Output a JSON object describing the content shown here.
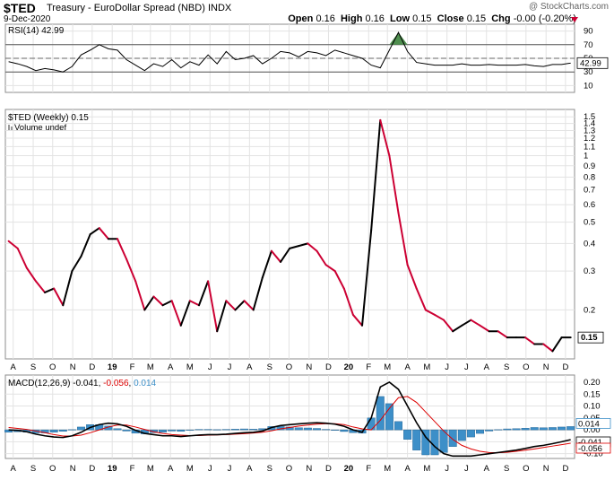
{
  "header": {
    "ticker": "$TED",
    "name": "Treasury - EuroDollar Spread (NBD)",
    "exchange": "INDX",
    "date": "9-Dec-2020",
    "brand": "@ StockCharts.com",
    "open_label": "Open",
    "open_value": "0.16",
    "high_label": "High",
    "high_value": "0.16",
    "low_label": "Low",
    "low_value": "0.15",
    "close_label": "Close",
    "close_value": "0.15",
    "chg_label": "Chg",
    "chg_value": "-0.00 (-0.20%)"
  },
  "chart_data": [
    {
      "type": "line",
      "panel": "RSI",
      "legend": "RSI(14) 42.99",
      "ylim": [
        0,
        100
      ],
      "yticks": [
        10,
        30,
        50,
        70,
        90
      ],
      "right_labels": [
        30,
        42.99,
        50,
        70,
        90
      ],
      "reference_lines": [
        30,
        70
      ],
      "current_value": "42.99",
      "x": [
        "2018-07-25",
        "2018-08-08",
        "2018-08-22",
        "2018-09-05",
        "2018-09-19",
        "2018-10-03",
        "2018-10-17",
        "2018-10-31",
        "2018-11-14",
        "2018-11-28",
        "2018-12-12",
        "2018-12-26",
        "2019-01-09",
        "2019-01-23",
        "2019-02-06",
        "2019-02-20",
        "2019-03-06",
        "2019-03-20",
        "2019-04-03",
        "2019-04-17",
        "2019-05-01",
        "2019-05-15",
        "2019-05-29",
        "2019-06-12",
        "2019-06-26",
        "2019-07-10",
        "2019-07-24",
        "2019-08-07",
        "2019-08-21",
        "2019-09-04",
        "2019-09-18",
        "2019-10-02",
        "2019-10-16",
        "2019-10-30",
        "2019-11-13",
        "2019-11-27",
        "2019-12-11",
        "2019-12-25",
        "2020-01-08",
        "2020-01-22",
        "2020-02-05",
        "2020-02-19",
        "2020-03-04",
        "2020-03-18",
        "2020-04-01",
        "2020-04-15",
        "2020-04-29",
        "2020-05-13",
        "2020-05-27",
        "2020-06-10",
        "2020-06-24",
        "2020-07-08",
        "2020-07-22",
        "2020-08-05",
        "2020-08-19",
        "2020-09-02",
        "2020-09-16",
        "2020-09-30",
        "2020-10-14",
        "2020-10-28",
        "2020-11-11",
        "2020-11-25",
        "2020-12-09"
      ],
      "values": [
        45,
        42,
        38,
        32,
        35,
        33,
        30,
        38,
        55,
        62,
        70,
        64,
        62,
        48,
        40,
        32,
        42,
        38,
        48,
        36,
        45,
        40,
        55,
        42,
        60,
        48,
        50,
        54,
        42,
        50,
        60,
        58,
        52,
        60,
        58,
        54,
        62,
        58,
        54,
        50,
        40,
        36,
        62,
        88,
        60,
        44,
        42,
        40,
        40,
        40,
        42,
        40,
        40,
        41,
        40,
        40,
        40,
        41,
        39,
        38,
        41,
        41,
        43
      ]
    },
    {
      "type": "line",
      "panel": "Price",
      "legend": "$TED (Weekly) 0.15",
      "sublegend": "Volume undef",
      "scale": "log",
      "ylim": [
        0.12,
        1.62
      ],
      "yticks": [
        0.2,
        0.3,
        0.4,
        0.5,
        0.6,
        0.7,
        0.8,
        0.9,
        1.0,
        1.1,
        1.2,
        1.3,
        1.4,
        1.5
      ],
      "current_value": "0.15",
      "up_color": "#000000",
      "down_color": "#cc0033",
      "x": [
        "2018-07-25",
        "2018-08-08",
        "2018-08-22",
        "2018-09-05",
        "2018-09-19",
        "2018-10-03",
        "2018-10-17",
        "2018-10-31",
        "2018-11-14",
        "2018-11-28",
        "2018-12-12",
        "2018-12-26",
        "2019-01-09",
        "2019-01-23",
        "2019-02-06",
        "2019-02-20",
        "2019-03-06",
        "2019-03-20",
        "2019-04-03",
        "2019-04-17",
        "2019-05-01",
        "2019-05-15",
        "2019-05-29",
        "2019-06-12",
        "2019-06-26",
        "2019-07-10",
        "2019-07-24",
        "2019-08-07",
        "2019-08-21",
        "2019-09-04",
        "2019-09-18",
        "2019-10-02",
        "2019-10-16",
        "2019-10-30",
        "2019-11-13",
        "2019-11-27",
        "2019-12-11",
        "2019-12-25",
        "2020-01-08",
        "2020-01-22",
        "2020-02-05",
        "2020-02-19",
        "2020-03-04",
        "2020-03-18",
        "2020-04-01",
        "2020-04-15",
        "2020-04-29",
        "2020-05-13",
        "2020-05-27",
        "2020-06-10",
        "2020-06-24",
        "2020-07-08",
        "2020-07-22",
        "2020-08-05",
        "2020-08-19",
        "2020-09-02",
        "2020-09-16",
        "2020-09-30",
        "2020-10-14",
        "2020-10-28",
        "2020-11-11",
        "2020-11-25",
        "2020-12-09"
      ],
      "values": [
        0.41,
        0.38,
        0.31,
        0.27,
        0.24,
        0.25,
        0.21,
        0.3,
        0.35,
        0.44,
        0.47,
        0.42,
        0.42,
        0.34,
        0.27,
        0.2,
        0.23,
        0.21,
        0.22,
        0.17,
        0.22,
        0.21,
        0.27,
        0.16,
        0.22,
        0.2,
        0.22,
        0.2,
        0.28,
        0.37,
        0.33,
        0.38,
        0.39,
        0.4,
        0.37,
        0.32,
        0.3,
        0.25,
        0.19,
        0.17,
        0.46,
        1.45,
        1.0,
        0.55,
        0.32,
        0.25,
        0.2,
        0.19,
        0.18,
        0.16,
        0.17,
        0.18,
        0.17,
        0.16,
        0.16,
        0.15,
        0.15,
        0.15,
        0.14,
        0.14,
        0.13,
        0.15,
        0.15
      ]
    },
    {
      "type": "line",
      "panel": "MACD",
      "legend_prefix": "MACD(12,26,9)",
      "legend_macd": "-0.041",
      "legend_signal": "-0.056",
      "legend_hist": "0.014",
      "ylim": [
        -0.12,
        0.23
      ],
      "yticks": [
        -0.1,
        -0.05,
        0.0,
        0.05,
        0.1,
        0.15,
        0.2
      ],
      "right_labels": [
        "0.014",
        "-0.041",
        "-0.056"
      ],
      "macd_color": "#000000",
      "signal_color": "#dd0000",
      "hist_color": "#3d8fc8",
      "x": [
        "2018-07-25",
        "2018-08-08",
        "2018-08-22",
        "2018-09-05",
        "2018-09-19",
        "2018-10-03",
        "2018-10-17",
        "2018-10-31",
        "2018-11-14",
        "2018-11-28",
        "2018-12-12",
        "2018-12-26",
        "2019-01-09",
        "2019-01-23",
        "2019-02-06",
        "2019-02-20",
        "2019-03-06",
        "2019-03-20",
        "2019-04-03",
        "2019-04-17",
        "2019-05-01",
        "2019-05-15",
        "2019-05-29",
        "2019-06-12",
        "2019-06-26",
        "2019-07-10",
        "2019-07-24",
        "2019-08-07",
        "2019-08-21",
        "2019-09-04",
        "2019-09-18",
        "2019-10-02",
        "2019-10-16",
        "2019-10-30",
        "2019-11-13",
        "2019-11-27",
        "2019-12-11",
        "2019-12-25",
        "2020-01-08",
        "2020-01-22",
        "2020-02-05",
        "2020-02-19",
        "2020-03-04",
        "2020-03-18",
        "2020-04-01",
        "2020-04-15",
        "2020-04-29",
        "2020-05-13",
        "2020-05-27",
        "2020-06-10",
        "2020-06-24",
        "2020-07-08",
        "2020-07-22",
        "2020-08-05",
        "2020-08-19",
        "2020-09-02",
        "2020-09-16",
        "2020-09-30",
        "2020-10-14",
        "2020-10-28",
        "2020-11-11",
        "2020-11-25",
        "2020-12-09"
      ],
      "macd": [
        0.0,
        -0.002,
        -0.008,
        -0.018,
        -0.025,
        -0.03,
        -0.032,
        -0.025,
        -0.01,
        0.01,
        0.022,
        0.028,
        0.025,
        0.015,
        -0.002,
        -0.015,
        -0.02,
        -0.025,
        -0.025,
        -0.028,
        -0.025,
        -0.022,
        -0.02,
        -0.02,
        -0.018,
        -0.015,
        -0.012,
        -0.01,
        -0.005,
        0.01,
        0.018,
        0.022,
        0.025,
        0.028,
        0.03,
        0.028,
        0.024,
        0.015,
        0.0,
        -0.01,
        0.05,
        0.18,
        0.2,
        0.17,
        0.1,
        0.03,
        -0.03,
        -0.07,
        -0.1,
        -0.11,
        -0.11,
        -0.11,
        -0.105,
        -0.1,
        -0.095,
        -0.09,
        -0.085,
        -0.078,
        -0.07,
        -0.065,
        -0.058,
        -0.05,
        -0.041
      ],
      "signal": [
        0.01,
        0.006,
        0.002,
        -0.005,
        -0.012,
        -0.02,
        -0.026,
        -0.026,
        -0.022,
        -0.012,
        0.0,
        0.012,
        0.02,
        0.02,
        0.012,
        0.002,
        -0.008,
        -0.015,
        -0.02,
        -0.022,
        -0.024,
        -0.024,
        -0.022,
        -0.021,
        -0.02,
        -0.018,
        -0.016,
        -0.013,
        -0.01,
        -0.004,
        0.004,
        0.01,
        0.016,
        0.02,
        0.024,
        0.026,
        0.026,
        0.022,
        0.012,
        0.004,
        0.0,
        0.04,
        0.09,
        0.135,
        0.14,
        0.115,
        0.075,
        0.035,
        -0.005,
        -0.04,
        -0.065,
        -0.08,
        -0.09,
        -0.095,
        -0.096,
        -0.094,
        -0.09,
        -0.085,
        -0.08,
        -0.074,
        -0.068,
        -0.062,
        -0.056
      ],
      "histogram": [
        -0.01,
        -0.008,
        -0.01,
        -0.013,
        -0.013,
        -0.01,
        -0.006,
        0.001,
        0.012,
        0.022,
        0.022,
        0.016,
        0.005,
        -0.005,
        -0.014,
        -0.017,
        -0.012,
        -0.01,
        -0.005,
        -0.006,
        -0.001,
        0.002,
        0.002,
        0.001,
        0.002,
        0.003,
        0.004,
        0.003,
        0.005,
        0.014,
        0.014,
        0.012,
        0.009,
        0.008,
        0.006,
        0.002,
        -0.002,
        -0.007,
        -0.012,
        -0.014,
        0.05,
        0.14,
        0.11,
        0.035,
        -0.04,
        -0.085,
        -0.105,
        -0.105,
        -0.095,
        -0.07,
        -0.045,
        -0.03,
        -0.015,
        -0.005,
        0.001,
        0.004,
        0.005,
        0.007,
        0.01,
        0.009,
        0.01,
        0.012,
        0.014
      ]
    }
  ],
  "x_axis": {
    "labels": [
      {
        "text": "A",
        "date": "2018-08-01",
        "bold": false
      },
      {
        "text": "S",
        "date": "2018-09-01",
        "bold": false
      },
      {
        "text": "O",
        "date": "2018-10-01",
        "bold": false
      },
      {
        "text": "N",
        "date": "2018-11-01",
        "bold": false
      },
      {
        "text": "D",
        "date": "2018-12-01",
        "bold": false
      },
      {
        "text": "19",
        "date": "2019-01-01",
        "bold": true
      },
      {
        "text": "F",
        "date": "2019-02-01",
        "bold": false
      },
      {
        "text": "M",
        "date": "2019-03-01",
        "bold": false
      },
      {
        "text": "A",
        "date": "2019-04-01",
        "bold": false
      },
      {
        "text": "M",
        "date": "2019-05-01",
        "bold": false
      },
      {
        "text": "J",
        "date": "2019-06-01",
        "bold": false
      },
      {
        "text": "J",
        "date": "2019-07-01",
        "bold": false
      },
      {
        "text": "A",
        "date": "2019-08-01",
        "bold": false
      },
      {
        "text": "S",
        "date": "2019-09-01",
        "bold": false
      },
      {
        "text": "O",
        "date": "2019-10-01",
        "bold": false
      },
      {
        "text": "N",
        "date": "2019-11-01",
        "bold": false
      },
      {
        "text": "D",
        "date": "2019-12-01",
        "bold": false
      },
      {
        "text": "20",
        "date": "2020-01-01",
        "bold": true
      },
      {
        "text": "F",
        "date": "2020-02-01",
        "bold": false
      },
      {
        "text": "M",
        "date": "2020-03-01",
        "bold": false
      },
      {
        "text": "A",
        "date": "2020-04-01",
        "bold": false
      },
      {
        "text": "M",
        "date": "2020-05-01",
        "bold": false
      },
      {
        "text": "J",
        "date": "2020-06-01",
        "bold": false
      },
      {
        "text": "J",
        "date": "2020-07-01",
        "bold": false
      },
      {
        "text": "A",
        "date": "2020-08-01",
        "bold": false
      },
      {
        "text": "S",
        "date": "2020-09-01",
        "bold": false
      },
      {
        "text": "O",
        "date": "2020-10-01",
        "bold": false
      },
      {
        "text": "N",
        "date": "2020-11-01",
        "bold": false
      },
      {
        "text": "D",
        "date": "2020-12-01",
        "bold": false
      }
    ],
    "start": "2018-07-20",
    "end": "2020-12-15"
  },
  "colors": {
    "grid": "#e3e3e3",
    "frame": "#8c8c8c",
    "rsi_fill": "#4f8f4f",
    "chg_arrow": "#cc0033"
  }
}
